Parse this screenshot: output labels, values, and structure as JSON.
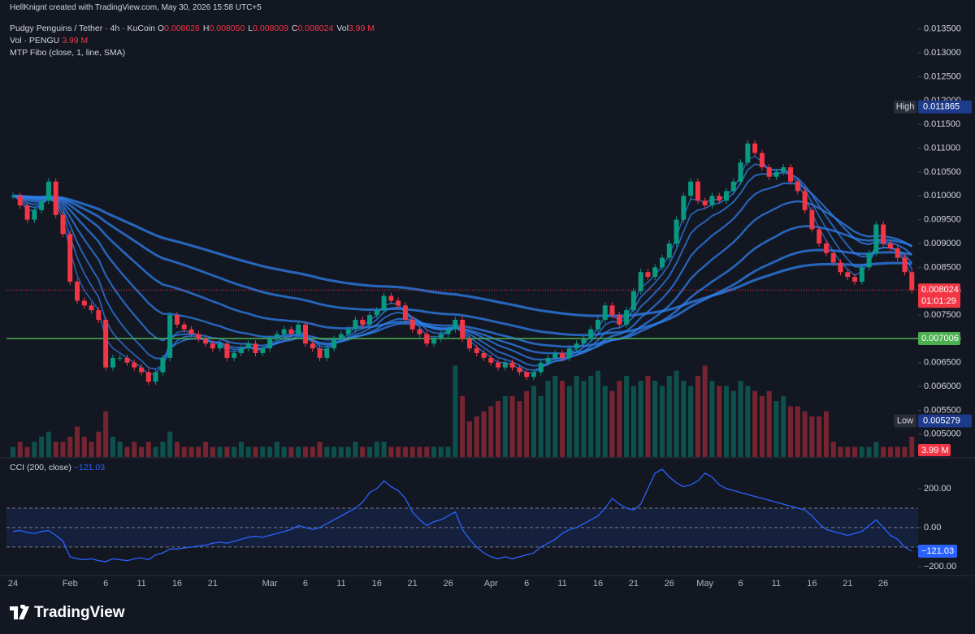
{
  "header": {
    "attribution": "HellKnignt created with TradingView.com, May 30, 2026 15:58 UTC+5",
    "legend": [
      {
        "key": "O",
        "value": "0.008026"
      },
      {
        "key": "H",
        "value": "0.008050"
      },
      {
        "key": "L",
        "value": "0.008009"
      },
      {
        "key": "C",
        "value": "0.008024"
      },
      {
        "key": "Vol",
        "value": "3.99 M"
      }
    ],
    "volume_legend": "Vol · PENGU",
    "volume_legend_value": "3.99 M",
    "indicator": "MTP Fibo (close, 1, line, SMA)"
  },
  "footer": {
    "brand": "TradingView"
  },
  "chart_data": [
    {
      "type": "candlestick",
      "title": "Pudgy Penguins / Tether · 4h · KuCoin",
      "categories": [
        "24",
        null,
        null,
        null,
        null,
        null,
        null,
        null,
        "Feb",
        null,
        null,
        null,
        null,
        "6",
        null,
        null,
        null,
        null,
        "11",
        null,
        null,
        null,
        null,
        "16",
        null,
        null,
        null,
        null,
        "21",
        null,
        null,
        null,
        null,
        null,
        null,
        null,
        "Mar",
        null,
        null,
        null,
        null,
        "6",
        null,
        null,
        null,
        null,
        "11",
        null,
        null,
        null,
        null,
        "16",
        null,
        null,
        null,
        null,
        "21",
        null,
        null,
        null,
        null,
        "26",
        null,
        null,
        null,
        null,
        null,
        "Apr",
        null,
        null,
        null,
        null,
        "6",
        null,
        null,
        null,
        null,
        "11",
        null,
        null,
        null,
        null,
        "16",
        null,
        null,
        null,
        null,
        "21",
        null,
        null,
        null,
        null,
        "26",
        null,
        null,
        null,
        null,
        "May",
        null,
        null,
        null,
        null,
        "6",
        null,
        null,
        null,
        null,
        "11",
        null,
        null,
        null,
        null,
        "16",
        null,
        null,
        null,
        null,
        "21",
        null,
        null,
        null,
        null,
        "26",
        null,
        null,
        null,
        null
      ],
      "close": [
        0.01,
        0.0098,
        0.0095,
        0.0097,
        0.0099,
        0.0103,
        0.0096,
        0.0092,
        0.0082,
        0.0078,
        0.0077,
        0.0076,
        0.0074,
        0.0064,
        0.0066,
        0.0066,
        0.0065,
        0.0064,
        0.0063,
        0.0061,
        0.0063,
        0.0066,
        0.0075,
        0.0073,
        0.0072,
        0.0071,
        0.007,
        0.0069,
        0.0068,
        0.0069,
        0.0066,
        0.0067,
        0.0068,
        0.0069,
        0.0067,
        0.0068,
        0.007,
        0.0071,
        0.0072,
        0.0071,
        0.0073,
        0.0069,
        0.0068,
        0.0066,
        0.0068,
        0.007,
        0.0071,
        0.0072,
        0.0074,
        0.0073,
        0.0075,
        0.0076,
        0.0079,
        0.0078,
        0.0077,
        0.0074,
        0.0072,
        0.0071,
        0.0069,
        0.007,
        0.0071,
        0.0072,
        0.0074,
        0.007,
        0.0068,
        0.0067,
        0.0066,
        0.0065,
        0.0064,
        0.0065,
        0.0064,
        0.0063,
        0.0062,
        0.0063,
        0.0065,
        0.0066,
        0.0067,
        0.0066,
        0.0068,
        0.0069,
        0.007,
        0.0072,
        0.0074,
        0.0077,
        0.0075,
        0.0073,
        0.0076,
        0.008,
        0.0084,
        0.0083,
        0.0085,
        0.0087,
        0.009,
        0.0095,
        0.01,
        0.0103,
        0.0099,
        0.0098,
        0.01,
        0.0099,
        0.0101,
        0.0103,
        0.0107,
        0.0111,
        0.0109,
        0.0106,
        0.0104,
        0.0105,
        0.0106,
        0.0103,
        0.0101,
        0.0097,
        0.0093,
        0.009,
        0.0088,
        0.0086,
        0.0084,
        0.0083,
        0.0082,
        0.0085,
        0.0088,
        0.0094,
        0.009,
        0.0089,
        0.0087,
        0.0084,
        0.008024
      ],
      "up_color": "#089981",
      "down_color": "#f23645",
      "ribbon_color": "#2f80ed",
      "ylim": [
        0.00452,
        0.01411
      ],
      "yticks": [
        {
          "value": 0.0135,
          "label": "0.013500"
        },
        {
          "value": 0.013,
          "label": "0.013000"
        },
        {
          "value": 0.0125,
          "label": "0.012500"
        },
        {
          "value": 0.012,
          "label": "0.012000"
        },
        {
          "value": 0.0115,
          "label": "0.011500"
        },
        {
          "value": 0.011,
          "label": "0.011000"
        },
        {
          "value": 0.0105,
          "label": "0.010500"
        },
        {
          "value": 0.01,
          "label": "0.010000"
        },
        {
          "value": 0.0095,
          "label": "0.009500"
        },
        {
          "value": 0.009,
          "label": "0.009000"
        },
        {
          "value": 0.0085,
          "label": "0.008500"
        },
        {
          "value": 0.008,
          "label": "0.008000"
        },
        {
          "value": 0.0075,
          "label": "0.007500"
        },
        {
          "value": 0.007,
          "label": "0.007000"
        },
        {
          "value": 0.0065,
          "label": "0.006500"
        },
        {
          "value": 0.006,
          "label": "0.006000"
        },
        {
          "value": 0.0055,
          "label": "0.005500"
        },
        {
          "value": 0.005,
          "label": "0.005000"
        }
      ],
      "high": {
        "label": "High",
        "value": 0.011865
      },
      "low": {
        "label": "Low",
        "value": 0.005279
      },
      "current": {
        "value": 0.008024,
        "countdown": "01:01:29",
        "color": "#f23645"
      },
      "level": {
        "value": 0.007006,
        "color": "#4caf50"
      },
      "volume": {
        "values": [
          2,
          3,
          2,
          3,
          4,
          5,
          3,
          3,
          4,
          6,
          4,
          3,
          5,
          9,
          4,
          3,
          2,
          3,
          2,
          3,
          2,
          3,
          5,
          3,
          2,
          2,
          2,
          3,
          2,
          2,
          2,
          2,
          3,
          2,
          2,
          2,
          2,
          3,
          2,
          2,
          2,
          2,
          2,
          3,
          2,
          2,
          2,
          2,
          3,
          2,
          2,
          3,
          3,
          2,
          2,
          2,
          2,
          2,
          2,
          2,
          2,
          2,
          18,
          12,
          7,
          8,
          9,
          10,
          11,
          12,
          12,
          11,
          13,
          14,
          12,
          15,
          16,
          15,
          14,
          16,
          15,
          16,
          17,
          14,
          13,
          15,
          16,
          14,
          15,
          16,
          15,
          14,
          16,
          17,
          15,
          14,
          16,
          18,
          15,
          14,
          14,
          13,
          15,
          14,
          13,
          12,
          13,
          11,
          12,
          10,
          10,
          9,
          8,
          8,
          9,
          3,
          2,
          2,
          2,
          2,
          2,
          3,
          2,
          2,
          2,
          2,
          3.99
        ],
        "ylim": [
          0,
          90
        ],
        "last_label": "3.99 M"
      }
    },
    {
      "type": "line",
      "title": "CCI (200, close)",
      "color": "#2962ff",
      "values": [
        -20,
        -15,
        -25,
        -30,
        -20,
        -15,
        -40,
        -70,
        -150,
        -160,
        -165,
        -160,
        -170,
        -175,
        -160,
        -165,
        -170,
        -160,
        -155,
        -165,
        -140,
        -130,
        -110,
        -110,
        -105,
        -100,
        -95,
        -90,
        -80,
        -75,
        -80,
        -70,
        -60,
        -50,
        -45,
        -50,
        -40,
        -30,
        -20,
        -10,
        10,
        0,
        -10,
        0,
        20,
        40,
        60,
        80,
        100,
        130,
        180,
        200,
        240,
        210,
        190,
        150,
        80,
        40,
        10,
        30,
        40,
        60,
        80,
        -10,
        -60,
        -100,
        -130,
        -150,
        -160,
        -150,
        -160,
        -150,
        -140,
        -130,
        -100,
        -80,
        -60,
        -30,
        -10,
        0,
        20,
        40,
        60,
        100,
        150,
        120,
        100,
        90,
        120,
        200,
        280,
        300,
        260,
        230,
        210,
        220,
        240,
        280,
        260,
        220,
        200,
        190,
        180,
        170,
        160,
        150,
        140,
        130,
        120,
        110,
        100,
        90,
        60,
        20,
        -10,
        -20,
        -30,
        -40,
        -30,
        -20,
        10,
        40,
        0,
        -40,
        -60,
        -100,
        -121.03
      ],
      "last_label": "−121.03",
      "ylim": [
        -242,
        354
      ],
      "yticks": [
        {
          "value": 200,
          "label": "200.00"
        },
        {
          "value": 0,
          "label": "0.00"
        },
        {
          "value": -200,
          "label": "−200.00"
        }
      ],
      "bands": [
        100,
        0,
        -100
      ]
    }
  ]
}
